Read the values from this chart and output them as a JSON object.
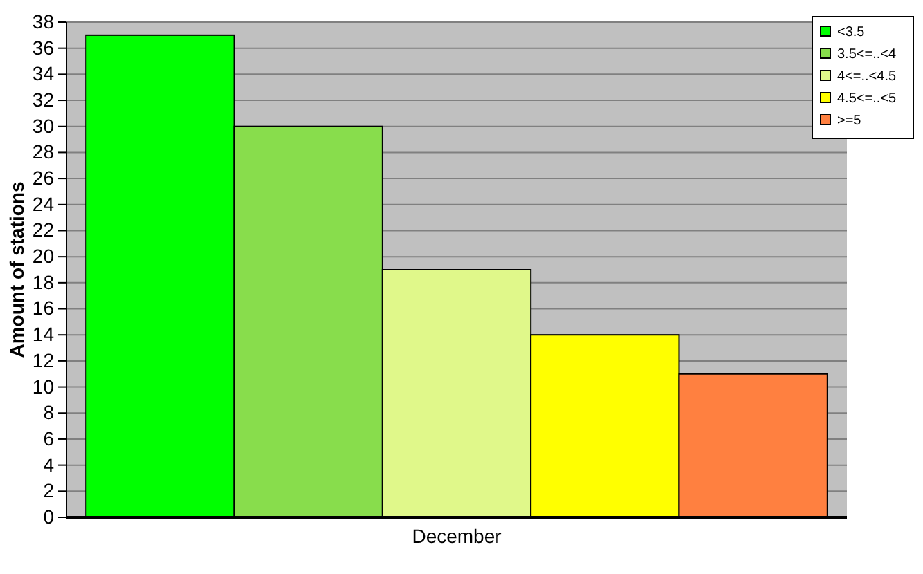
{
  "chart_data": {
    "type": "bar",
    "ylabel": "Amount of stations",
    "categories": [
      "December"
    ],
    "series": [
      {
        "name": "<3.5",
        "color": "#00ff00",
        "values": [
          37
        ]
      },
      {
        "name": "3.5<=..<4",
        "color": "#88dd4c",
        "values": [
          30
        ]
      },
      {
        "name": "4<=..<4.5",
        "color": "#e0f88a",
        "values": [
          19
        ]
      },
      {
        "name": "4.5<=..<5",
        "color": "#ffff00",
        "values": [
          14
        ]
      },
      {
        "name": ">=5",
        "color": "#ff8040",
        "values": [
          11
        ]
      }
    ],
    "ylim": [
      0,
      38
    ],
    "yticks": [
      0,
      2,
      4,
      6,
      8,
      10,
      12,
      14,
      16,
      18,
      20,
      22,
      24,
      26,
      28,
      30,
      32,
      34,
      36,
      38
    ],
    "grid": "y",
    "legend": "top right"
  }
}
